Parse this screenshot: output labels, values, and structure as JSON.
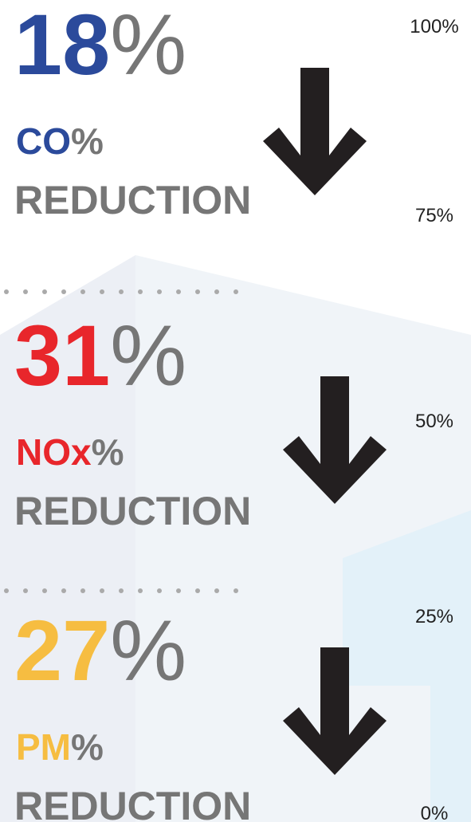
{
  "items": [
    {
      "number": "18",
      "number_suffix": "%",
      "pollutant": "CO",
      "pollutant_suffix": "%",
      "label": "REDUCTION",
      "color": "#2b4a9b"
    },
    {
      "number": "31",
      "number_suffix": "%",
      "pollutant": "NOx",
      "pollutant_suffix": "%",
      "label": "REDUCTION",
      "color": "#e8262b"
    },
    {
      "number": "27",
      "number_suffix": "%",
      "pollutant": "PM",
      "pollutant_suffix": "%",
      "label": "REDUCTION",
      "color": "#f6bd41"
    }
  ],
  "scale": [
    "100%",
    "75%",
    "50%",
    "25%",
    "0%"
  ]
}
